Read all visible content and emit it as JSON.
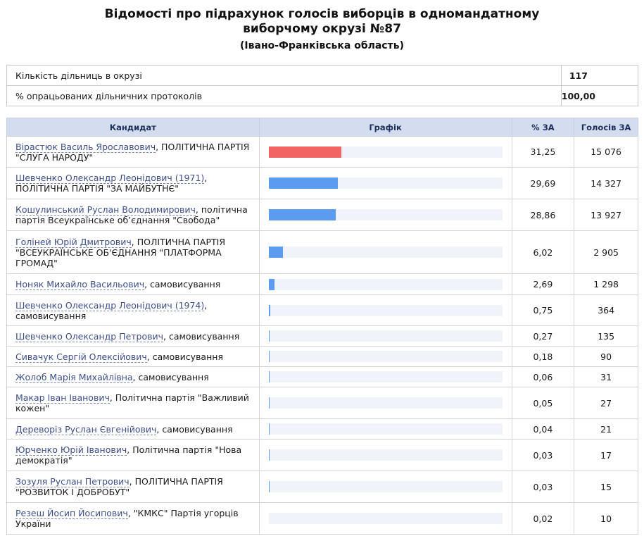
{
  "header": {
    "title_line1": "Відомості про підрахунок голосів виборців в одномандатному",
    "title_line2": "виборчому окрузі №87",
    "subtitle": "(Івано-Франківська область)"
  },
  "summary": [
    {
      "label": "Кількість дільниць в окрузі",
      "value": "117"
    },
    {
      "label": "% опрацьованих дільничних протоколів",
      "value": "100,00"
    }
  ],
  "columns": {
    "candidate": "Кандидат",
    "graph": "Графік",
    "pct": "% ЗА",
    "votes": "Голосів ЗА"
  },
  "colors": {
    "winner_bar": "#f26464",
    "other_bar": "#5b9cf0"
  },
  "candidates": [
    {
      "name": "Вірастюк Василь Ярославович",
      "party": ", ПОЛІТИЧНА ПАРТІЯ \"СЛУГА НАРОДУ\"",
      "pct": "31,25",
      "pct_value": 31.25,
      "votes": "15 076",
      "winner": true
    },
    {
      "name": "Шевченко Олександр Леонідович (1971)",
      "party": ", ПОЛІТИЧНА ПАРТІЯ \"ЗА МАЙБУТНЄ\"",
      "pct": "29,69",
      "pct_value": 29.69,
      "votes": "14 327",
      "winner": false
    },
    {
      "name": "Кошулинський Руслан Володимирович",
      "party": ", політична партія Всеукраїнське об’єднання \"Свобода\"",
      "pct": "28,86",
      "pct_value": 28.86,
      "votes": "13 927",
      "winner": false
    },
    {
      "name": "Голіней Юрій Дмитрович",
      "party": ", ПОЛІТИЧНА ПАРТІЯ \"ВСЕУКРАЇНСЬКЕ ОБ'ЄДНАННЯ \"ПЛАТФОРМА ГРОМАД\"",
      "pct": "6,02",
      "pct_value": 6.02,
      "votes": "2 905",
      "winner": false
    },
    {
      "name": "Ноняк Михайло Васильович",
      "party": ", самовисування",
      "pct": "2,69",
      "pct_value": 2.69,
      "votes": "1 298",
      "winner": false
    },
    {
      "name": "Шевченко Олександр Леонідович (1974)",
      "party": ", самовисування",
      "pct": "0,75",
      "pct_value": 0.75,
      "votes": "364",
      "winner": false
    },
    {
      "name": "Шевченко Олександр Петрович",
      "party": ", самовисування",
      "pct": "0,27",
      "pct_value": 0.27,
      "votes": "135",
      "winner": false
    },
    {
      "name": "Сивачук Сергій Олексійович",
      "party": ", самовисування",
      "pct": "0,18",
      "pct_value": 0.18,
      "votes": "90",
      "winner": false
    },
    {
      "name": "Жолоб Марія Михайлівна",
      "party": ", самовисування",
      "pct": "0,06",
      "pct_value": 0.06,
      "votes": "31",
      "winner": false
    },
    {
      "name": "Макар Іван Іванович",
      "party": ", Політична партія \"Важливий кожен\"",
      "pct": "0,05",
      "pct_value": 0.05,
      "votes": "27",
      "winner": false
    },
    {
      "name": "Дереворіз Руслан Євгенійович",
      "party": ", самовисування",
      "pct": "0,04",
      "pct_value": 0.04,
      "votes": "21",
      "winner": false
    },
    {
      "name": "Юрченко Юрій Іванович",
      "party": ", Політична партія \"Нова демократія\"",
      "pct": "0,03",
      "pct_value": 0.03,
      "votes": "17",
      "winner": false
    },
    {
      "name": "Зозуля Руслан Петрович",
      "party": ", ПОЛІТИЧНА ПАРТІЯ \"РОЗВИТОК І ДОБРОБУТ\"",
      "pct": "0,03",
      "pct_value": 0.03,
      "votes": "15",
      "winner": false
    },
    {
      "name": "Резеш Йосип Йосипович",
      "party": ", \"КМКС\" Партія угорців України",
      "pct": "0,02",
      "pct_value": 0.02,
      "votes": "10",
      "winner": false
    }
  ]
}
